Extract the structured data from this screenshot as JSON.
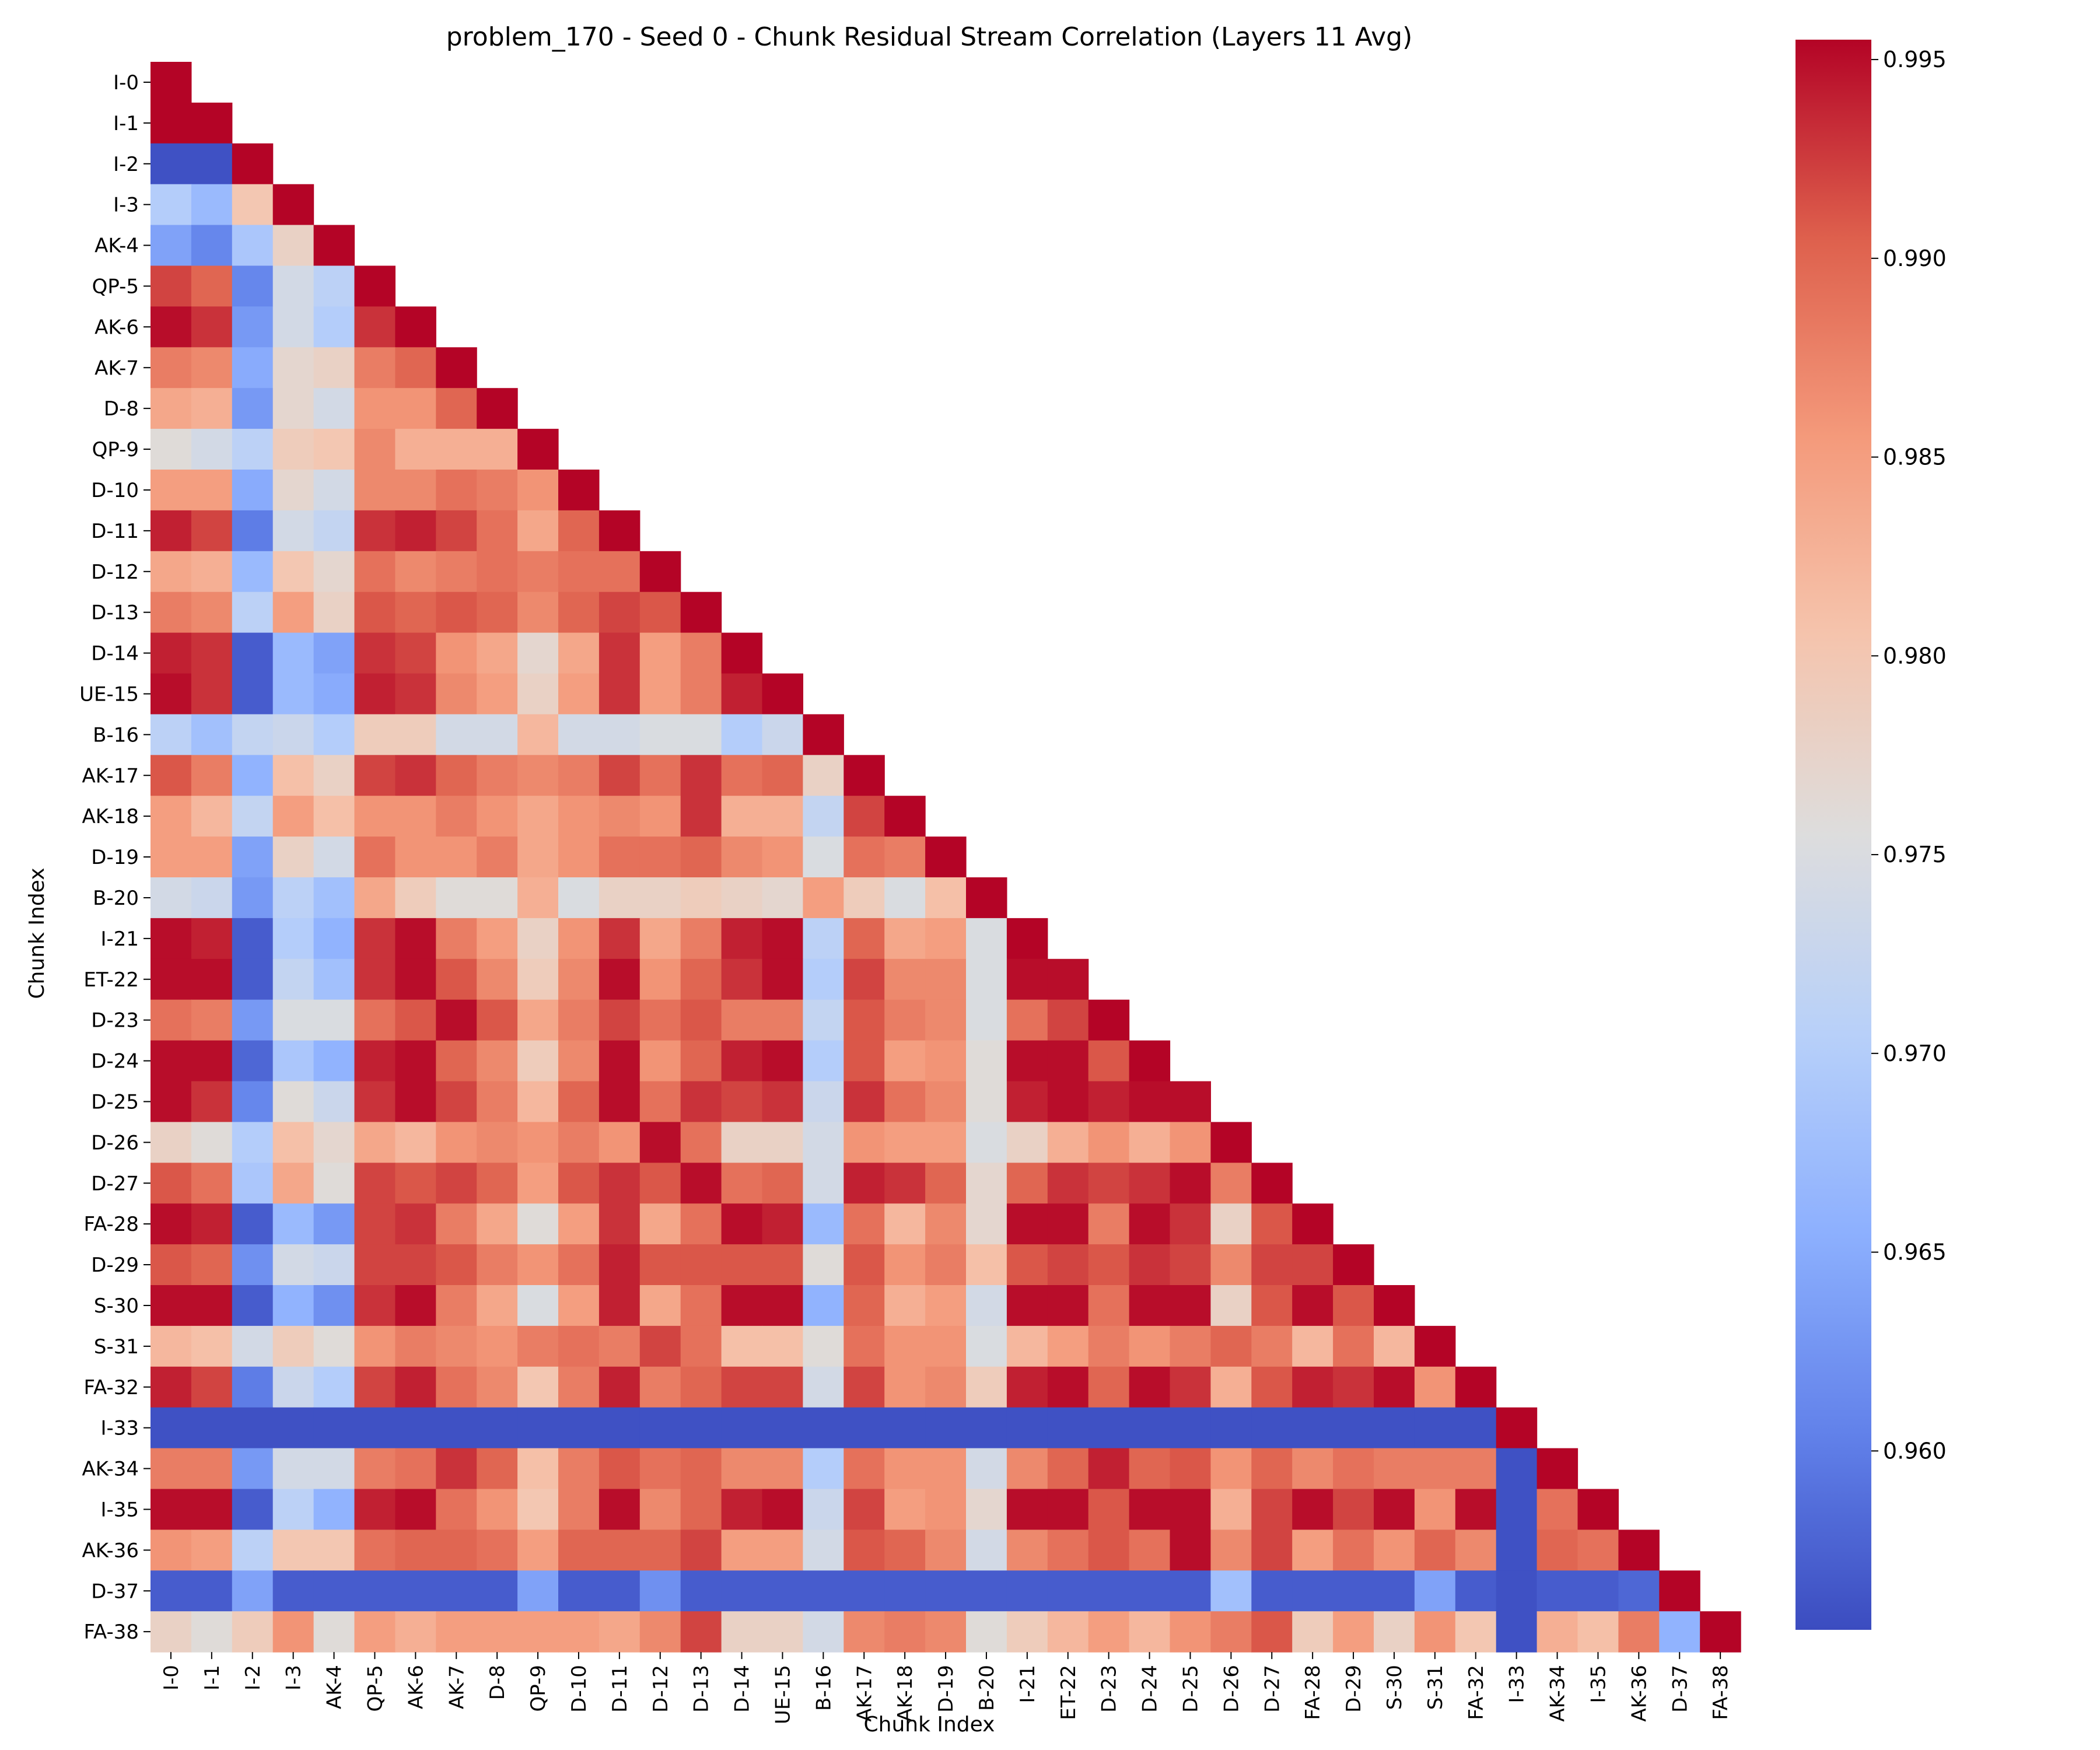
{
  "chart_data": {
    "type": "heatmap",
    "title": "problem_170 - Seed 0 - Chunk Residual Stream Correlation (Layers 11 Avg)",
    "xlabel": "Chunk Index",
    "ylabel": "Chunk Index",
    "colormap": "coolwarm",
    "vmin": 0.9555,
    "vmax": 0.9955,
    "colorbar_ticks": [
      "0.960",
      "0.965",
      "0.970",
      "0.975",
      "0.980",
      "0.985",
      "0.990",
      "0.995"
    ],
    "labels": [
      "I-0",
      "I-1",
      "I-2",
      "I-3",
      "AK-4",
      "QP-5",
      "AK-6",
      "AK-7",
      "D-8",
      "QP-9",
      "D-10",
      "D-11",
      "D-12",
      "D-13",
      "D-14",
      "UE-15",
      "B-16",
      "AK-17",
      "AK-18",
      "D-19",
      "B-20",
      "I-21",
      "ET-22",
      "D-23",
      "D-24",
      "D-25",
      "D-26",
      "D-27",
      "FA-28",
      "D-29",
      "S-30",
      "S-31",
      "FA-32",
      "I-33",
      "AK-34",
      "I-35",
      "AK-36",
      "D-37",
      "FA-38"
    ],
    "mask": "upper triangle above diagonal hidden",
    "rows": [
      [
        0.996
      ],
      [
        0.996,
        0.996
      ],
      [
        0.956,
        0.956,
        0.996
      ],
      [
        0.97,
        0.967,
        0.98,
        0.996
      ],
      [
        0.964,
        0.961,
        0.969,
        0.978,
        0.996
      ],
      [
        0.992,
        0.99,
        0.961,
        0.974,
        0.971,
        0.996
      ],
      [
        0.995,
        0.993,
        0.963,
        0.974,
        0.97,
        0.993,
        0.996
      ],
      [
        0.988,
        0.987,
        0.965,
        0.977,
        0.978,
        0.988,
        0.99,
        0.996
      ],
      [
        0.984,
        0.983,
        0.963,
        0.977,
        0.974,
        0.986,
        0.986,
        0.99,
        0.996
      ],
      [
        0.976,
        0.974,
        0.971,
        0.979,
        0.98,
        0.987,
        0.983,
        0.983,
        0.983,
        0.996
      ],
      [
        0.985,
        0.985,
        0.965,
        0.977,
        0.974,
        0.987,
        0.987,
        0.989,
        0.988,
        0.986,
        0.996
      ],
      [
        0.994,
        0.992,
        0.96,
        0.974,
        0.972,
        0.993,
        0.994,
        0.992,
        0.989,
        0.984,
        0.99,
        0.996
      ],
      [
        0.984,
        0.983,
        0.967,
        0.98,
        0.977,
        0.989,
        0.987,
        0.988,
        0.989,
        0.988,
        0.989,
        0.989,
        0.996
      ],
      [
        0.988,
        0.987,
        0.971,
        0.985,
        0.978,
        0.991,
        0.99,
        0.991,
        0.99,
        0.987,
        0.99,
        0.992,
        0.991,
        0.996
      ],
      [
        0.994,
        0.993,
        0.957,
        0.967,
        0.964,
        0.993,
        0.992,
        0.986,
        0.984,
        0.977,
        0.984,
        0.993,
        0.985,
        0.988,
        0.996
      ],
      [
        0.995,
        0.993,
        0.957,
        0.967,
        0.965,
        0.994,
        0.993,
        0.987,
        0.985,
        0.978,
        0.985,
        0.993,
        0.985,
        0.988,
        0.994,
        0.996
      ],
      [
        0.971,
        0.968,
        0.972,
        0.973,
        0.97,
        0.979,
        0.979,
        0.974,
        0.974,
        0.982,
        0.974,
        0.974,
        0.975,
        0.975,
        0.97,
        0.973,
        0.996
      ],
      [
        0.991,
        0.988,
        0.966,
        0.981,
        0.978,
        0.992,
        0.993,
        0.99,
        0.988,
        0.987,
        0.988,
        0.992,
        0.989,
        0.993,
        0.989,
        0.99,
        0.978,
        0.996
      ],
      [
        0.985,
        0.982,
        0.972,
        0.985,
        0.981,
        0.986,
        0.986,
        0.988,
        0.986,
        0.984,
        0.986,
        0.987,
        0.986,
        0.993,
        0.983,
        0.983,
        0.972,
        0.992,
        0.996
      ],
      [
        0.985,
        0.985,
        0.964,
        0.978,
        0.974,
        0.989,
        0.986,
        0.986,
        0.988,
        0.984,
        0.986,
        0.989,
        0.989,
        0.99,
        0.987,
        0.986,
        0.975,
        0.989,
        0.988,
        0.996
      ],
      [
        0.974,
        0.973,
        0.963,
        0.971,
        0.968,
        0.984,
        0.979,
        0.976,
        0.976,
        0.983,
        0.975,
        0.978,
        0.978,
        0.979,
        0.978,
        0.977,
        0.985,
        0.979,
        0.975,
        0.981,
        0.996
      ],
      [
        0.995,
        0.994,
        0.957,
        0.97,
        0.966,
        0.993,
        0.995,
        0.988,
        0.985,
        0.978,
        0.986,
        0.993,
        0.984,
        0.988,
        0.994,
        0.995,
        0.971,
        0.99,
        0.984,
        0.985,
        0.975,
        0.996
      ],
      [
        0.995,
        0.995,
        0.957,
        0.972,
        0.968,
        0.993,
        0.995,
        0.991,
        0.987,
        0.979,
        0.987,
        0.995,
        0.986,
        0.99,
        0.993,
        0.995,
        0.97,
        0.992,
        0.987,
        0.987,
        0.975,
        0.995,
        0.995
      ],
      [
        0.989,
        0.988,
        0.963,
        0.975,
        0.975,
        0.989,
        0.991,
        0.995,
        0.991,
        0.984,
        0.988,
        0.992,
        0.989,
        0.991,
        0.988,
        0.988,
        0.972,
        0.991,
        0.988,
        0.987,
        0.975,
        0.989,
        0.992,
        0.996
      ],
      [
        0.995,
        0.995,
        0.958,
        0.969,
        0.966,
        0.994,
        0.995,
        0.99,
        0.987,
        0.979,
        0.987,
        0.995,
        0.986,
        0.99,
        0.994,
        0.995,
        0.97,
        0.991,
        0.985,
        0.986,
        0.976,
        0.995,
        0.995,
        0.991,
        0.996
      ],
      [
        0.995,
        0.993,
        0.961,
        0.976,
        0.973,
        0.993,
        0.995,
        0.992,
        0.988,
        0.982,
        0.99,
        0.995,
        0.989,
        0.993,
        0.992,
        0.993,
        0.973,
        0.993,
        0.989,
        0.987,
        0.976,
        0.994,
        0.995,
        0.994,
        0.995,
        0.995
      ],
      [
        0.978,
        0.976,
        0.97,
        0.981,
        0.977,
        0.984,
        0.982,
        0.986,
        0.987,
        0.986,
        0.988,
        0.986,
        0.995,
        0.989,
        0.978,
        0.978,
        0.974,
        0.986,
        0.985,
        0.985,
        0.975,
        0.978,
        0.983,
        0.986,
        0.983,
        0.986,
        0.996
      ],
      [
        0.991,
        0.989,
        0.969,
        0.984,
        0.976,
        0.992,
        0.991,
        0.992,
        0.99,
        0.985,
        0.991,
        0.993,
        0.991,
        0.995,
        0.989,
        0.99,
        0.974,
        0.994,
        0.993,
        0.99,
        0.977,
        0.99,
        0.993,
        0.992,
        0.993,
        0.995,
        0.988,
        0.996
      ],
      [
        0.995,
        0.994,
        0.957,
        0.967,
        0.963,
        0.992,
        0.993,
        0.988,
        0.984,
        0.976,
        0.985,
        0.993,
        0.984,
        0.989,
        0.995,
        0.994,
        0.967,
        0.989,
        0.982,
        0.987,
        0.977,
        0.995,
        0.995,
        0.988,
        0.995,
        0.993,
        0.978,
        0.991,
        0.996
      ],
      [
        0.991,
        0.99,
        0.962,
        0.974,
        0.973,
        0.992,
        0.992,
        0.991,
        0.988,
        0.986,
        0.989,
        0.994,
        0.991,
        0.991,
        0.991,
        0.991,
        0.976,
        0.991,
        0.986,
        0.988,
        0.981,
        0.991,
        0.992,
        0.991,
        0.993,
        0.992,
        0.987,
        0.992,
        0.992,
        0.996
      ],
      [
        0.995,
        0.995,
        0.957,
        0.966,
        0.962,
        0.993,
        0.995,
        0.988,
        0.984,
        0.975,
        0.985,
        0.994,
        0.984,
        0.989,
        0.995,
        0.995,
        0.966,
        0.99,
        0.983,
        0.985,
        0.974,
        0.995,
        0.995,
        0.989,
        0.995,
        0.995,
        0.978,
        0.991,
        0.995,
        0.991,
        0.996
      ],
      [
        0.982,
        0.981,
        0.974,
        0.979,
        0.976,
        0.986,
        0.988,
        0.987,
        0.986,
        0.988,
        0.989,
        0.988,
        0.992,
        0.989,
        0.981,
        0.981,
        0.976,
        0.989,
        0.986,
        0.986,
        0.975,
        0.982,
        0.985,
        0.988,
        0.986,
        0.988,
        0.99,
        0.988,
        0.982,
        0.989,
        0.982,
        0.996
      ],
      [
        0.994,
        0.992,
        0.96,
        0.973,
        0.97,
        0.992,
        0.994,
        0.989,
        0.987,
        0.98,
        0.988,
        0.994,
        0.988,
        0.99,
        0.992,
        0.992,
        0.974,
        0.992,
        0.986,
        0.987,
        0.979,
        0.994,
        0.995,
        0.99,
        0.995,
        0.993,
        0.983,
        0.991,
        0.994,
        0.993,
        0.995,
        0.986,
        0.996
      ],
      [
        0.956,
        0.956,
        0.956,
        0.956,
        0.956,
        0.956,
        0.956,
        0.956,
        0.956,
        0.956,
        0.956,
        0.956,
        0.956,
        0.956,
        0.956,
        0.956,
        0.956,
        0.956,
        0.956,
        0.956,
        0.956,
        0.956,
        0.956,
        0.956,
        0.956,
        0.956,
        0.956,
        0.956,
        0.956,
        0.956,
        0.956,
        0.956,
        0.956,
        0.996
      ],
      [
        0.988,
        0.988,
        0.963,
        0.974,
        0.974,
        0.988,
        0.989,
        0.993,
        0.99,
        0.981,
        0.988,
        0.991,
        0.989,
        0.99,
        0.987,
        0.987,
        0.97,
        0.989,
        0.986,
        0.986,
        0.974,
        0.987,
        0.99,
        0.994,
        0.99,
        0.991,
        0.986,
        0.99,
        0.987,
        0.989,
        0.988,
        0.988,
        0.988,
        0.956,
        0.996
      ],
      [
        0.995,
        0.995,
        0.957,
        0.971,
        0.966,
        0.994,
        0.995,
        0.989,
        0.986,
        0.98,
        0.988,
        0.995,
        0.987,
        0.99,
        0.994,
        0.995,
        0.973,
        0.992,
        0.985,
        0.986,
        0.977,
        0.995,
        0.995,
        0.991,
        0.995,
        0.995,
        0.983,
        0.992,
        0.995,
        0.992,
        0.995,
        0.986,
        0.995,
        0.956,
        0.989,
        0.996
      ],
      [
        0.986,
        0.985,
        0.971,
        0.98,
        0.98,
        0.989,
        0.99,
        0.99,
        0.989,
        0.985,
        0.99,
        0.99,
        0.99,
        0.992,
        0.985,
        0.985,
        0.974,
        0.991,
        0.99,
        0.987,
        0.974,
        0.987,
        0.989,
        0.991,
        0.989,
        0.995,
        0.987,
        0.992,
        0.985,
        0.989,
        0.986,
        0.99,
        0.987,
        0.956,
        0.99,
        0.989,
        0.996
      ],
      [
        0.957,
        0.957,
        0.964,
        0.957,
        0.957,
        0.957,
        0.957,
        0.957,
        0.957,
        0.964,
        0.957,
        0.957,
        0.962,
        0.957,
        0.957,
        0.957,
        0.957,
        0.957,
        0.957,
        0.957,
        0.957,
        0.957,
        0.957,
        0.957,
        0.957,
        0.957,
        0.968,
        0.957,
        0.957,
        0.957,
        0.957,
        0.964,
        0.957,
        0.956,
        0.957,
        0.957,
        0.958,
        0.996
      ],
      [
        0.978,
        0.976,
        0.979,
        0.986,
        0.976,
        0.985,
        0.983,
        0.985,
        0.985,
        0.985,
        0.985,
        0.984,
        0.987,
        0.992,
        0.978,
        0.978,
        0.974,
        0.987,
        0.988,
        0.987,
        0.976,
        0.979,
        0.982,
        0.985,
        0.982,
        0.986,
        0.988,
        0.991,
        0.979,
        0.985,
        0.978,
        0.986,
        0.98,
        0.956,
        0.983,
        0.981,
        0.988,
        0.966,
        0.996
      ]
    ]
  }
}
